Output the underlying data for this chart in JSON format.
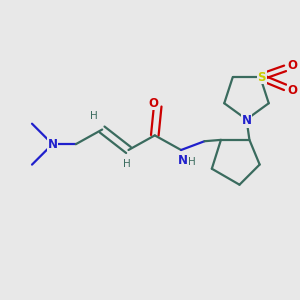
{
  "background_color": "#e8e8e8",
  "bond_color": "#3a6b5e",
  "N_color": "#2020cc",
  "O_color": "#cc0000",
  "S_color": "#cccc00",
  "bond_width": 1.6,
  "figsize": [
    3.0,
    3.0
  ],
  "dpi": 100,
  "xlim": [
    0,
    10
  ],
  "ylim": [
    0,
    10
  ]
}
